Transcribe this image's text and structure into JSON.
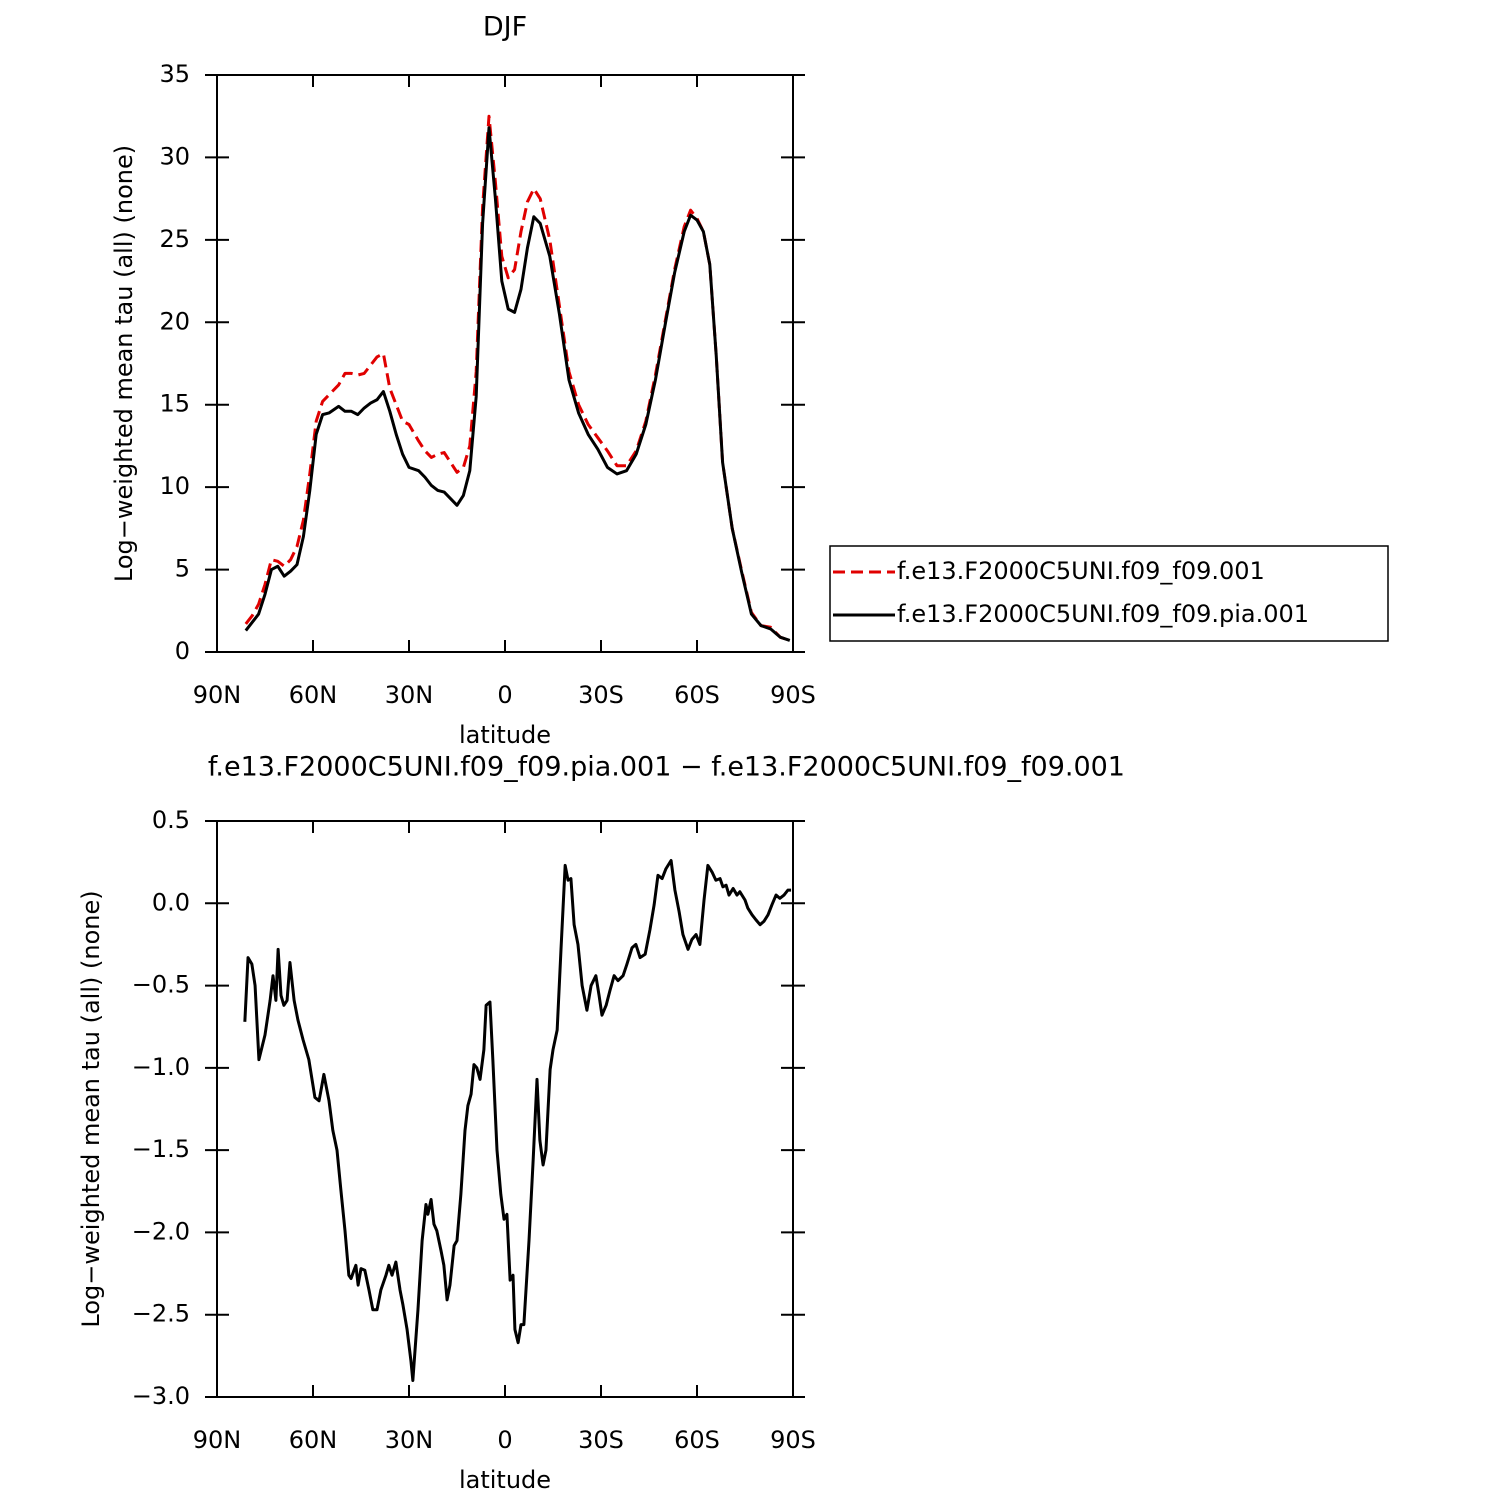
{
  "chart_data": [
    {
      "type": "line",
      "title": "DJF",
      "xlabel": "latitude",
      "ylabel": "Log−weighted mean tau (all) (none)",
      "xlim": [
        90,
        -90
      ],
      "xticks": [
        {
          "value": 90,
          "label": "90N"
        },
        {
          "value": 60,
          "label": "60N"
        },
        {
          "value": 30,
          "label": "30N"
        },
        0,
        {
          "value": -30,
          "label": "30S"
        },
        {
          "value": -60,
          "label": "60S"
        },
        {
          "value": -90,
          "label": "90S"
        }
      ],
      "ylim": [
        0,
        35
      ],
      "yticks": [
        0,
        5,
        10,
        15,
        20,
        25,
        30,
        35
      ],
      "legend": "right",
      "x": [
        81,
        79,
        77,
        75,
        73,
        71,
        69,
        67,
        65,
        63,
        61,
        59,
        57,
        55,
        52,
        50,
        48,
        46,
        44,
        42,
        40,
        38,
        36,
        34,
        32,
        30,
        27,
        25,
        23,
        21,
        19,
        17,
        15,
        13,
        11,
        9,
        7,
        5,
        3,
        1,
        -1,
        -3,
        -5,
        -7,
        -9,
        -11,
        -14,
        -17,
        -20,
        -23,
        -26,
        -29,
        -32,
        -35,
        -38,
        -41,
        -44,
        -47,
        -50,
        -53,
        -56,
        -58,
        -60,
        -62,
        -64,
        -66,
        -68,
        -71,
        -74,
        -77,
        -80,
        -83,
        -86,
        -89
      ],
      "series": [
        {
          "name": "f.e13.F2000C5UNI.f09_f09.001",
          "color": "#e00000",
          "dash": "dashed",
          "values": [
            1.7,
            2.2,
            2.9,
            4.1,
            5.6,
            5.5,
            5.2,
            5.6,
            6.4,
            8.0,
            10.8,
            14.0,
            15.2,
            15.6,
            16.2,
            16.9,
            16.9,
            16.8,
            16.9,
            17.4,
            17.9,
            18.1,
            16.0,
            15.0,
            14.0,
            13.8,
            12.8,
            12.2,
            11.8,
            12.0,
            12.1,
            11.5,
            10.9,
            11.2,
            12.5,
            17,
            27,
            32.5,
            28.5,
            24,
            22.7,
            23.2,
            25.5,
            27.3,
            28.1,
            27.5,
            25,
            21,
            17,
            15,
            13.8,
            13.0,
            12.2,
            11.3,
            11.3,
            12.2,
            14.0,
            16.8,
            20.0,
            23.2,
            25.8,
            26.8,
            26.3,
            25.5,
            23.5,
            18,
            11.5,
            7.5,
            4.9,
            2.4,
            1.6,
            1.5,
            0.9,
            0.7
          ]
        },
        {
          "name": "f.e13.F2000C5UNI.f09_f09.pia.001",
          "color": "#000000",
          "dash": "solid",
          "values": [
            1.3,
            1.8,
            2.3,
            3.5,
            5.0,
            5.2,
            4.6,
            4.9,
            5.3,
            7.0,
            9.8,
            13.2,
            14.4,
            14.5,
            14.9,
            14.6,
            14.6,
            14.4,
            14.8,
            15.1,
            15.3,
            15.8,
            14.6,
            13.2,
            12.0,
            11.2,
            11.0,
            10.6,
            10.1,
            9.8,
            9.7,
            9.3,
            8.9,
            9.5,
            11.0,
            15.5,
            26,
            31.8,
            27.5,
            22.5,
            20.8,
            20.6,
            22.0,
            24.5,
            26.4,
            26,
            24,
            20.5,
            16.5,
            14.5,
            13.2,
            12.3,
            11.2,
            10.8,
            11.0,
            12.0,
            13.8,
            16.5,
            19.8,
            23.0,
            25.5,
            26.5,
            26.2,
            25.5,
            23.5,
            18,
            11.5,
            7.5,
            4.8,
            2.3,
            1.6,
            1.4,
            0.9,
            0.7
          ]
        }
      ]
    },
    {
      "type": "line",
      "title": "f.e13.F2000C5UNI.f09_f09.pia.001 − f.e13.F2000C5UNI.f09_f09.001",
      "xlabel": "latitude",
      "ylabel": "Log−weighted mean tau (all) (none)",
      "xlim": [
        90,
        -90
      ],
      "xticks": [
        {
          "value": 90,
          "label": "90N"
        },
        {
          "value": 60,
          "label": "60N"
        },
        {
          "value": 30,
          "label": "30N"
        },
        0,
        {
          "value": -30,
          "label": "30S"
        },
        {
          "value": -60,
          "label": "60S"
        },
        {
          "value": -90,
          "label": "90S"
        }
      ],
      "ylim": [
        -3.0,
        0.5
      ],
      "yticks": [
        0.5,
        {
          "value": 0,
          "label": "0.0"
        },
        {
          "value": -0.5,
          "label": "−0.5"
        },
        {
          "value": -1.0,
          "label": "−1.0"
        },
        {
          "value": -1.5,
          "label": "−1.5"
        },
        {
          "value": -2.0,
          "label": "−2.0"
        },
        {
          "value": -2.5,
          "label": "−2.5"
        },
        {
          "value": -3.0,
          "label": "−3.0"
        }
      ],
      "x": [
        81.3,
        80.3,
        79.1,
        78.1,
        76.9,
        75,
        73.4,
        72.5,
        71.6,
        70.9,
        70,
        69.1,
        68.1,
        67.2,
        65.9,
        64.7,
        63.1,
        61.3,
        59.4,
        58.1,
        56.6,
        55,
        53.8,
        52.5,
        51.3,
        50,
        48.8,
        48.1,
        47.2,
        46.6,
        45.9,
        45,
        43.8,
        42.5,
        41.3,
        40,
        38.8,
        37.2,
        36.3,
        35.3,
        34.1,
        32.8,
        31.9,
        30.6,
        29.4,
        28.8,
        27.2,
        25.9,
        24.7,
        24.1,
        23.1,
        22.2,
        21.3,
        20,
        19.1,
        18.1,
        17.2,
        15.9,
        15,
        13.8,
        12.5,
        11.6,
        10.6,
        9.7,
        8.8,
        7.8,
        6.6,
        5.9,
        4.7,
        3.8,
        2.5,
        1.3,
        0.3,
        -0.6,
        -1.6,
        -2.5,
        -3.1,
        -4.1,
        -5,
        -5.9,
        -7.5,
        -8.8,
        -10,
        -10.9,
        -11.9,
        -12.8,
        -14.1,
        -15,
        -16.3,
        -17.5,
        -18.8,
        -19.7,
        -20.6,
        -21.6,
        -22.8,
        -24.1,
        -25.6,
        -26.9,
        -28.4,
        -29.4,
        -30.3,
        -31.6,
        -32.8,
        -34.1,
        -35.3,
        -36.9,
        -38.1,
        -39.7,
        -40.9,
        -42.2,
        -43.8,
        -45.3,
        -46.6,
        -47.8,
        -49.1,
        -50.3,
        -51.9,
        -53.1,
        -54.4,
        -55.6,
        -57.2,
        -58.4,
        -59.7,
        -60.9,
        -62.2,
        -63.4,
        -64.7,
        -65.9,
        -67.2,
        -68.1,
        -69.1,
        -70,
        -71.3,
        -72.5,
        -73.4,
        -75,
        -75.9,
        -77.2,
        -78.4,
        -79.7,
        -80.9,
        -82.2,
        -83.4,
        -84.7,
        -85.9,
        -87.2,
        -88.4,
        -89.4
      ],
      "series": [
        {
          "color": "#000000",
          "dash": "solid",
          "values": [
            -0.72,
            -0.33,
            -0.37,
            -0.5,
            -0.95,
            -0.8,
            -0.59,
            -0.44,
            -0.59,
            -0.28,
            -0.56,
            -0.62,
            -0.59,
            -0.36,
            -0.59,
            -0.71,
            -0.83,
            -0.95,
            -1.18,
            -1.2,
            -1.04,
            -1.2,
            -1.38,
            -1.5,
            -1.74,
            -1.99,
            -2.26,
            -2.28,
            -2.23,
            -2.2,
            -2.32,
            -2.22,
            -2.23,
            -2.35,
            -2.47,
            -2.47,
            -2.35,
            -2.26,
            -2.2,
            -2.26,
            -2.18,
            -2.35,
            -2.44,
            -2.59,
            -2.78,
            -2.9,
            -2.47,
            -2.05,
            -1.83,
            -1.89,
            -1.8,
            -1.95,
            -1.99,
            -2.11,
            -2.2,
            -2.41,
            -2.32,
            -2.08,
            -2.05,
            -1.77,
            -1.38,
            -1.23,
            -1.16,
            -0.98,
            -1.0,
            -1.07,
            -0.89,
            -0.62,
            -0.6,
            -0.95,
            -1.5,
            -1.77,
            -1.92,
            -1.89,
            -2.29,
            -2.26,
            -2.59,
            -2.67,
            -2.56,
            -2.56,
            -2.05,
            -1.56,
            -1.07,
            -1.44,
            -1.59,
            -1.5,
            -1.01,
            -0.89,
            -0.77,
            -0.28,
            0.23,
            0.14,
            0.15,
            -0.13,
            -0.25,
            -0.5,
            -0.65,
            -0.5,
            -0.44,
            -0.56,
            -0.68,
            -0.62,
            -0.53,
            -0.44,
            -0.47,
            -0.44,
            -0.37,
            -0.27,
            -0.25,
            -0.33,
            -0.31,
            -0.16,
            -0.01,
            0.17,
            0.15,
            0.21,
            0.26,
            0.08,
            -0.05,
            -0.19,
            -0.28,
            -0.22,
            -0.19,
            -0.25,
            0.02,
            0.23,
            0.19,
            0.14,
            0.15,
            0.1,
            0.11,
            0.05,
            0.09,
            0.05,
            0.07,
            0.02,
            -0.03,
            -0.07,
            -0.1,
            -0.13,
            -0.11,
            -0.07,
            -0.01,
            0.05,
            0.03,
            0.05,
            0.08,
            0.08
          ]
        }
      ]
    }
  ]
}
